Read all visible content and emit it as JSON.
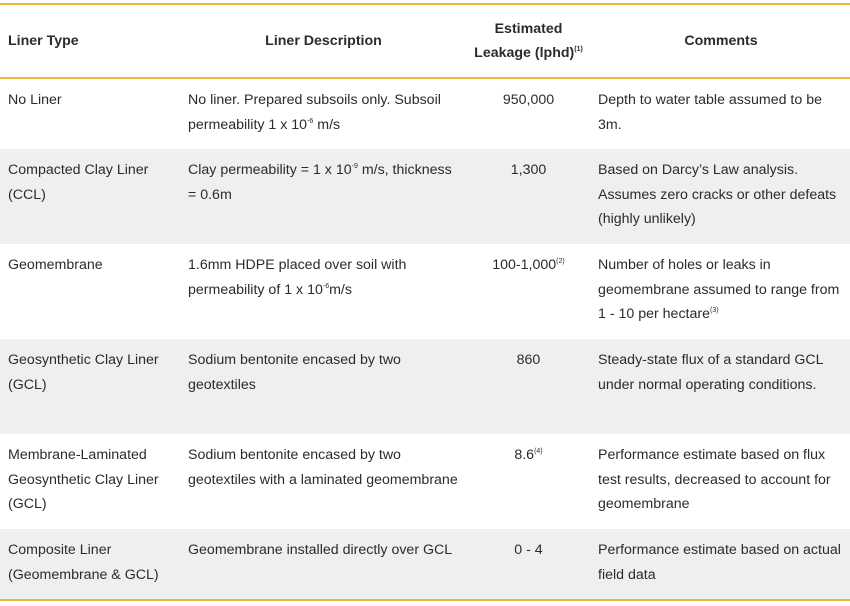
{
  "table": {
    "header": [
      "Liner Type",
      "Liner Description",
      [
        {
          "text": "Estimated Leakage (lphd)"
        },
        {
          "sup": "(1)"
        }
      ],
      "Comments"
    ],
    "rows": [
      [
        "No Liner",
        [
          {
            "text": "No liner. Prepared subsoils only. Subsoil permeability 1 x 10"
          },
          {
            "sup": "-6"
          },
          {
            "text": " m/s"
          }
        ],
        "950,000",
        "Depth to water table assumed to be 3m."
      ],
      [
        "Compacted Clay Liner (CCL)",
        [
          {
            "text": "Clay permeability = 1 x 10"
          },
          {
            "sup": "-9"
          },
          {
            "text": " m/s, thickness = 0.6m"
          }
        ],
        "1,300",
        "Based on Darcy’s Law analysis. Assumes zero cracks or other defeats (highly unlikely)"
      ],
      [
        "Geomembrane",
        [
          {
            "text": "1.6mm HDPE placed over soil with permeability of 1 x 10"
          },
          {
            "sup": "-6"
          },
          {
            "text": "m/s"
          }
        ],
        [
          {
            "text": "100-1,000"
          },
          {
            "sup": "(2)"
          }
        ],
        [
          {
            "text": "Number of holes or leaks in geomembrane assumed to range from 1 - 10 per hectare"
          },
          {
            "sup": "(3)"
          }
        ]
      ],
      [
        "Geosynthetic Clay Liner (GCL)",
        "Sodium bentonite encased by two geotextiles",
        "860",
        "Steady-state flux of a standard GCL under normal operating conditions."
      ],
      [
        "Membrane-Laminated Geosynthetic Clay Liner (GCL)",
        "Sodium bentonite encased by two geotextiles with a laminated geomembrane",
        [
          {
            "text": "8.6"
          },
          {
            "sup": "(4)"
          }
        ],
        "Performance estimate based on flux test results, decreased to account for geomembrane"
      ],
      [
        "Composite Liner (Geomembrane & GCL)",
        "Geomembrane installed directly over GCL",
        "0 - 4",
        "Performance estimate based on actual field data"
      ]
    ]
  }
}
